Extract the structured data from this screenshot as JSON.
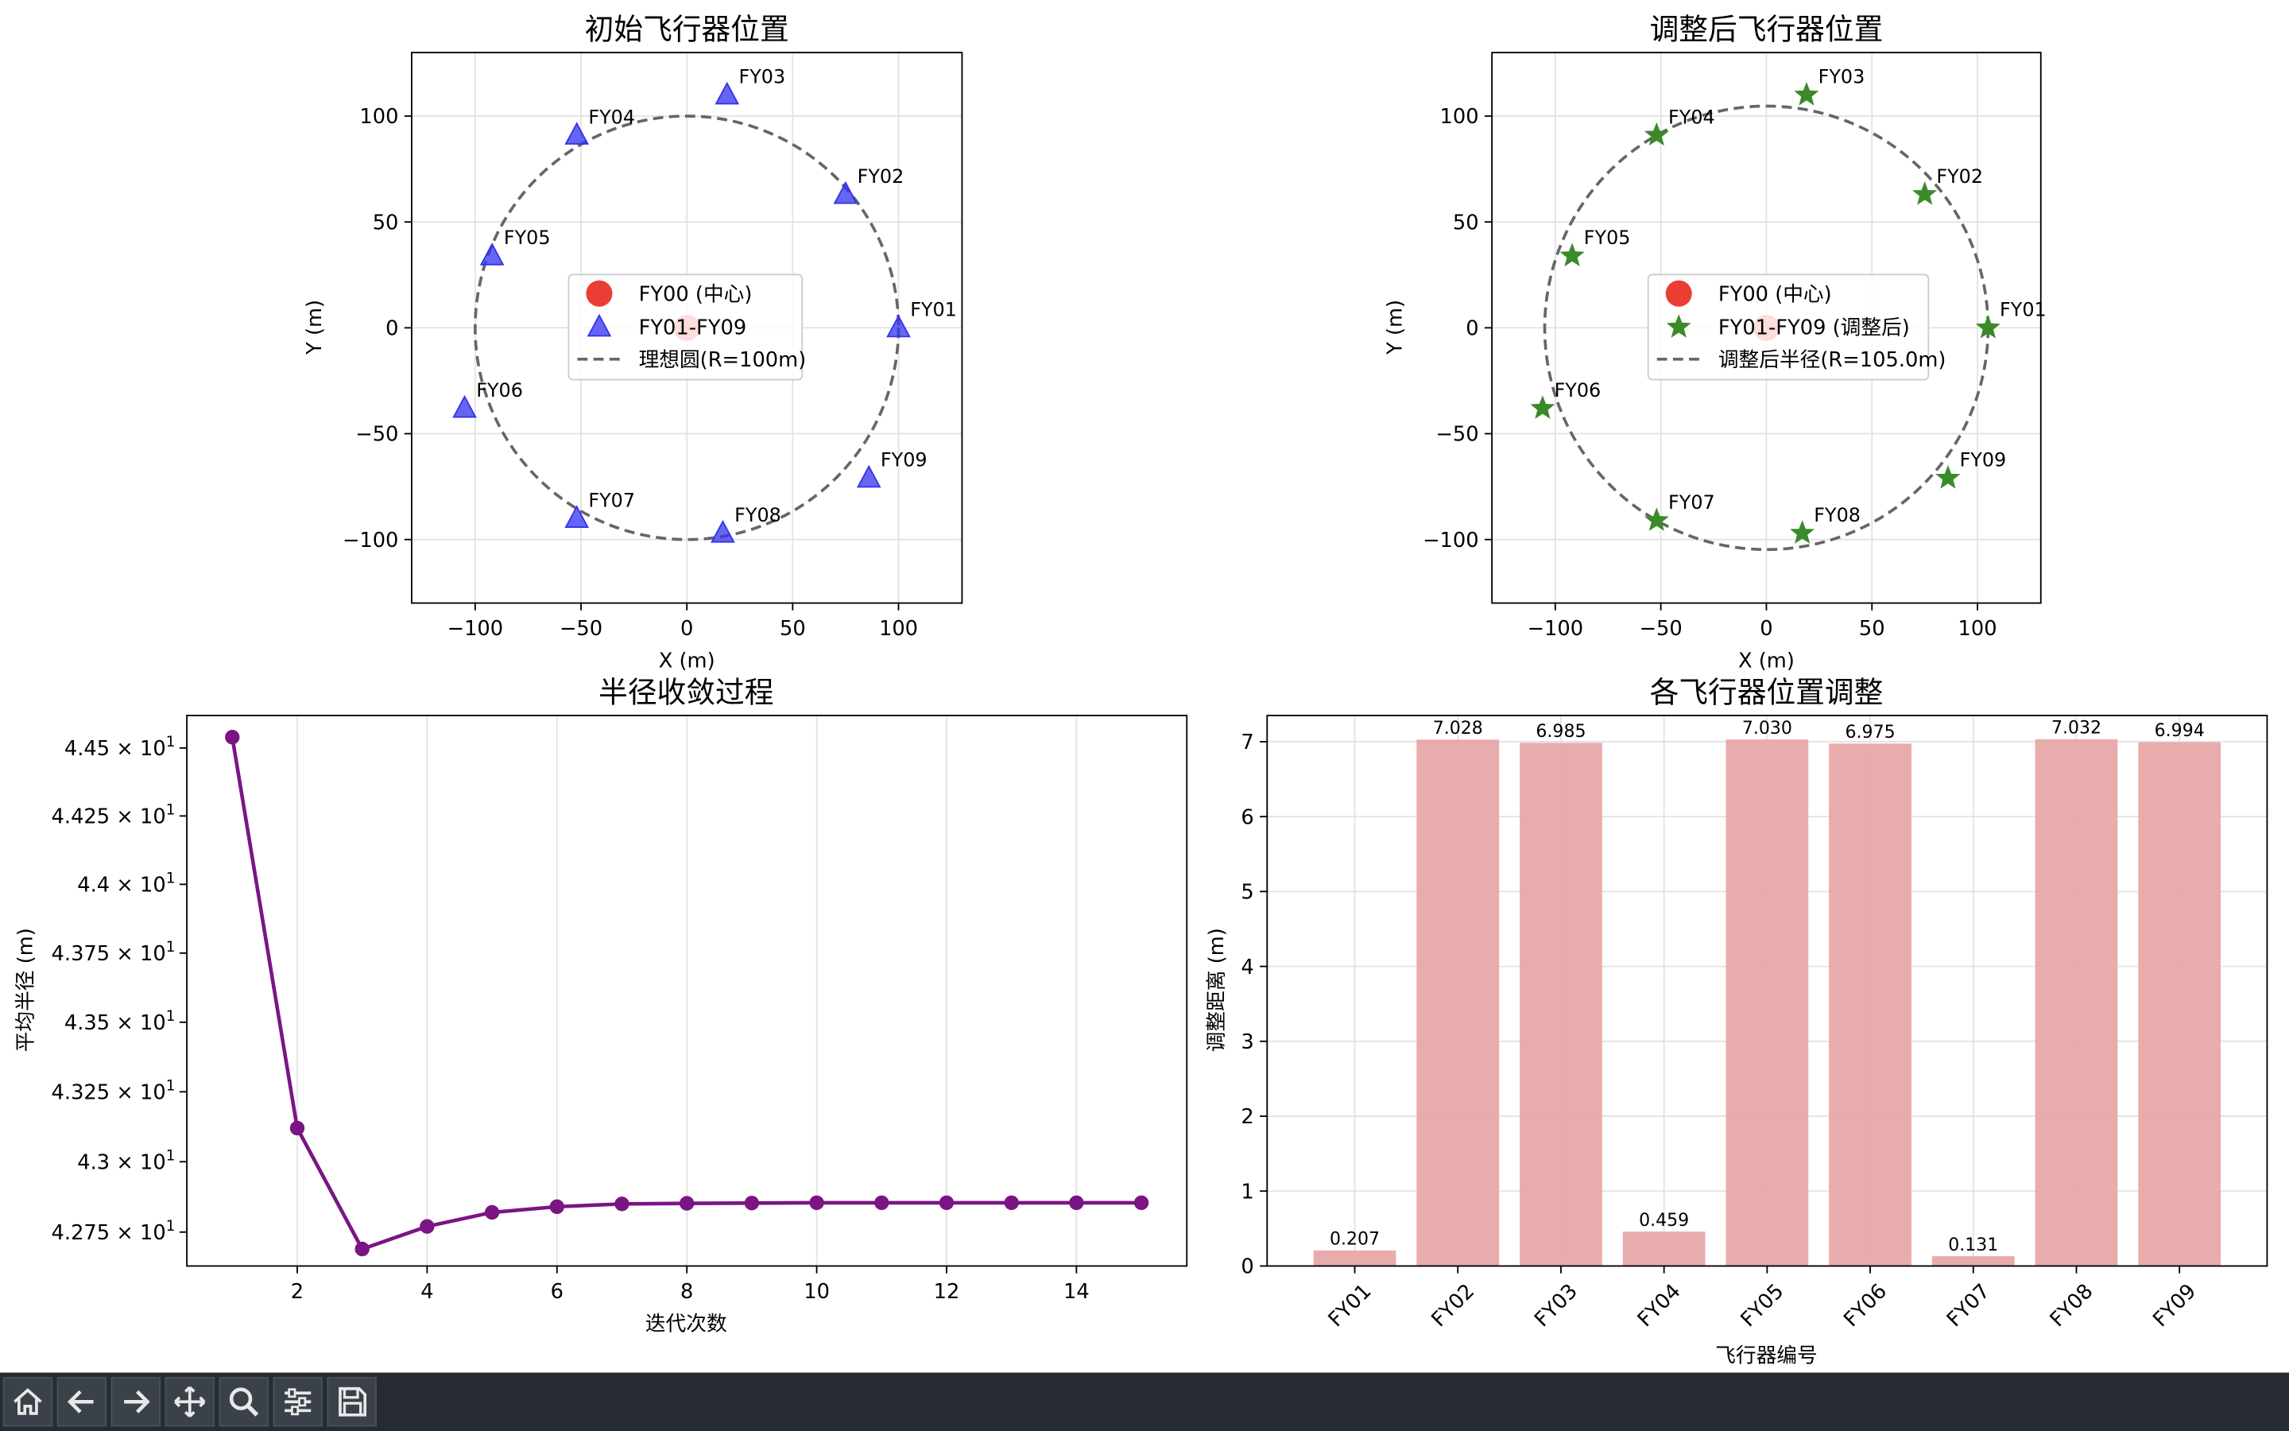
{
  "chart_data": [
    {
      "type": "scatter",
      "title": "初始飞行器位置",
      "xlabel": "X (m)",
      "ylabel": "Y (m)",
      "xlim": [
        -130,
        130
      ],
      "ylim": [
        -130,
        130
      ],
      "xticks": [
        -100,
        -50,
        0,
        50,
        100
      ],
      "yticks": [
        -100,
        -50,
        0,
        50,
        100
      ],
      "grid": true,
      "legend_position": "center",
      "legend": [
        "FY00 (中心)",
        "FY01-FY09",
        "理想圆(R=100m)"
      ],
      "center": {
        "label": "FY00 (中心)",
        "x": 0,
        "y": 0,
        "color": "#e8281e"
      },
      "series_color": "#3333ee",
      "circle_radius": 100,
      "points": [
        {
          "name": "FY01",
          "x": 100,
          "y": 0
        },
        {
          "name": "FY02",
          "x": 75,
          "y": 63
        },
        {
          "name": "FY03",
          "x": 19,
          "y": 110
        },
        {
          "name": "FY04",
          "x": -52,
          "y": 91
        },
        {
          "name": "FY05",
          "x": -92,
          "y": 34
        },
        {
          "name": "FY06",
          "x": -105,
          "y": -38
        },
        {
          "name": "FY07",
          "x": -52,
          "y": -90
        },
        {
          "name": "FY08",
          "x": 17,
          "y": -97
        },
        {
          "name": "FY09",
          "x": 86,
          "y": -71
        }
      ]
    },
    {
      "type": "scatter",
      "title": "调整后飞行器位置",
      "xlabel": "X (m)",
      "ylabel": "Y (m)",
      "xlim": [
        -130,
        130
      ],
      "ylim": [
        -130,
        130
      ],
      "xticks": [
        -100,
        -50,
        0,
        50,
        100
      ],
      "yticks": [
        -100,
        -50,
        0,
        50,
        100
      ],
      "grid": true,
      "legend_position": "center",
      "legend": [
        "FY00 (中心)",
        "FY01-FY09 (调整后)",
        "调整后半径(R=105.0m)"
      ],
      "center": {
        "label": "FY00 (中心)",
        "x": 0,
        "y": 0,
        "color": "#e8281e"
      },
      "series_color": "#3a8a2a",
      "circle_radius": 105,
      "points": [
        {
          "name": "FY01",
          "x": 105,
          "y": 0
        },
        {
          "name": "FY02",
          "x": 75,
          "y": 63
        },
        {
          "name": "FY03",
          "x": 19,
          "y": 110
        },
        {
          "name": "FY04",
          "x": -52,
          "y": 91
        },
        {
          "name": "FY05",
          "x": -92,
          "y": 34
        },
        {
          "name": "FY06",
          "x": -106,
          "y": -38
        },
        {
          "name": "FY07",
          "x": -52,
          "y": -91
        },
        {
          "name": "FY08",
          "x": 17,
          "y": -97
        },
        {
          "name": "FY09",
          "x": 86,
          "y": -71
        }
      ]
    },
    {
      "type": "line",
      "title": "半径收敛过程",
      "xlabel": "迭代次数",
      "ylabel": "平均半径 (m)",
      "yscale": "log",
      "xlim": [
        0.3,
        15.7
      ],
      "ylim": [
        42.63,
        44.62
      ],
      "xticks": [
        2,
        4,
        6,
        8,
        10,
        12,
        14
      ],
      "yticks": [
        42.75,
        43.0,
        43.25,
        43.5,
        43.75,
        44.0,
        44.25,
        44.5
      ],
      "ytick_labels": [
        {
          "mant": "4.275",
          "exp": "1"
        },
        {
          "mant": "4.3",
          "exp": "1"
        },
        {
          "mant": "4.325",
          "exp": "1"
        },
        {
          "mant": "4.35",
          "exp": "1"
        },
        {
          "mant": "4.375",
          "exp": "1"
        },
        {
          "mant": "4.4",
          "exp": "1"
        },
        {
          "mant": "4.425",
          "exp": "1"
        },
        {
          "mant": "4.45",
          "exp": "1"
        }
      ],
      "grid": true,
      "color": "#7a1583",
      "x": [
        1,
        2,
        3,
        4,
        5,
        6,
        7,
        8,
        9,
        10,
        11,
        12,
        13,
        14,
        15
      ],
      "y": [
        44.54,
        43.12,
        42.69,
        42.77,
        42.82,
        42.84,
        42.85,
        42.852,
        42.853,
        42.854,
        42.854,
        42.854,
        42.854,
        42.854,
        42.854
      ]
    },
    {
      "type": "bar",
      "title": "各飞行器位置调整",
      "xlabel": "飞行器编号",
      "ylabel": "调整距离 (m)",
      "ylim": [
        0,
        7.35
      ],
      "yticks": [
        0,
        1,
        2,
        3,
        4,
        5,
        6,
        7
      ],
      "grid": true,
      "color": "#e8a8a8",
      "categories": [
        "FY01",
        "FY02",
        "FY03",
        "FY04",
        "FY05",
        "FY06",
        "FY07",
        "FY08",
        "FY09"
      ],
      "values": [
        0.207,
        7.028,
        6.985,
        0.459,
        7.03,
        6.975,
        0.131,
        7.032,
        6.994
      ],
      "value_labels": [
        "0.207",
        "7.028",
        "6.985",
        "0.459",
        "7.030",
        "6.975",
        "0.131",
        "7.032",
        "6.994"
      ]
    }
  ],
  "toolbar": {
    "buttons": [
      {
        "name": "home-button",
        "icon": "home-icon"
      },
      {
        "name": "back-button",
        "icon": "arrow-left-icon"
      },
      {
        "name": "forward-button",
        "icon": "arrow-right-icon"
      },
      {
        "name": "pan-button",
        "icon": "move-icon"
      },
      {
        "name": "zoom-button",
        "icon": "magnifier-icon"
      },
      {
        "name": "configure-subplots-button",
        "icon": "sliders-icon"
      },
      {
        "name": "save-button",
        "icon": "floppy-disk-icon"
      }
    ]
  }
}
